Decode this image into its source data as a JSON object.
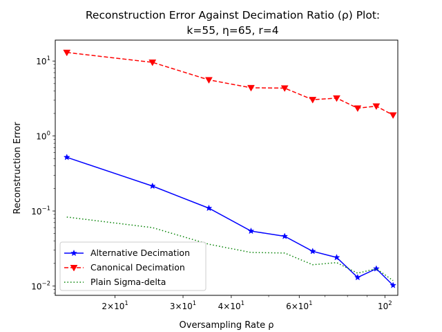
{
  "chart_data": {
    "type": "line",
    "title_line1": "Reconstruction Error Against Decimation Ratio (ρ) Plot:",
    "title_line2": "k=55, η=65, r=4",
    "xlabel": "Oversampling Rate ρ",
    "ylabel": "Reconstruction Error",
    "xscale": "log",
    "yscale": "log",
    "xlim": [
      14.0,
      108.0
    ],
    "ylim": [
      0.0075,
      19.0
    ],
    "x": [
      15,
      25,
      35,
      45,
      55,
      65,
      75,
      85,
      95,
      105
    ],
    "series": [
      {
        "name": "Alternative Decimation",
        "color": "#0000ff",
        "linestyle": "solid",
        "marker": "star",
        "values": [
          0.52,
          0.215,
          0.109,
          0.054,
          0.046,
          0.029,
          0.024,
          0.013,
          0.017,
          0.0102
        ]
      },
      {
        "name": "Canonical Decimation",
        "color": "#ff0000",
        "linestyle": "dashed",
        "marker": "triangle-down",
        "values": [
          13.0,
          9.6,
          5.6,
          4.4,
          4.35,
          3.05,
          3.2,
          2.35,
          2.5,
          1.9
        ]
      },
      {
        "name": "Plain Sigma-delta",
        "color": "#008000",
        "linestyle": "dotted",
        "marker": "none",
        "values": [
          0.083,
          0.06,
          0.036,
          0.028,
          0.0275,
          0.0192,
          0.0205,
          0.0148,
          0.017,
          0.0118
        ]
      }
    ],
    "x_major_ticks": [
      {
        "value": 20,
        "base": "2×10",
        "exp": "1"
      },
      {
        "value": 30,
        "base": "3×10",
        "exp": "1"
      },
      {
        "value": 40,
        "base": "4×10",
        "exp": "1"
      },
      {
        "value": 60,
        "base": "6×10",
        "exp": "1"
      },
      {
        "value": 100,
        "base": "10",
        "exp": "2"
      }
    ],
    "x_minor_ticks": [
      50,
      70,
      80,
      90
    ],
    "y_major_ticks": [
      {
        "value": 10,
        "base": "10",
        "exp": "1"
      },
      {
        "value": 1,
        "base": "10",
        "exp": "0"
      },
      {
        "value": 0.1,
        "base": "10",
        "exp": "−1"
      },
      {
        "value": 0.01,
        "base": "10",
        "exp": "−2"
      }
    ],
    "legend_position": "lower-left"
  }
}
